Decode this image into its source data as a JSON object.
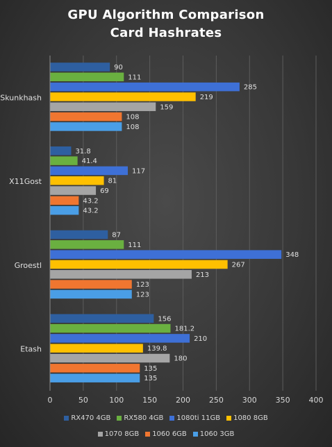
{
  "chart_data": {
    "type": "bar",
    "orientation": "horizontal",
    "title": "GPU Algorithm Comparison\nCard Hashrates",
    "title_lines": [
      "GPU Algorithm  Comparison",
      "Card  Hashrates"
    ],
    "categories": [
      "Skunkhash",
      "X11Gost",
      "Groestl",
      "Etash"
    ],
    "series": [
      {
        "name": "RX470 4GB",
        "color": "#2e5fa0",
        "values": [
          90,
          31.8,
          87,
          156
        ],
        "labels": [
          "90",
          "31.8",
          "87",
          "156"
        ]
      },
      {
        "name": "RX580 4GB",
        "color": "#6ab040",
        "values": [
          111,
          41.4,
          111,
          181.2
        ],
        "labels": [
          "111",
          "41.4",
          "111",
          "181.2"
        ]
      },
      {
        "name": "1080ti 11GB",
        "color": "#3e70d6",
        "values": [
          285,
          117,
          348,
          210
        ],
        "labels": [
          "285",
          "117",
          "348",
          "210"
        ]
      },
      {
        "name": "1080 8GB",
        "color": "#ffc000",
        "values": [
          219,
          81,
          267,
          139.8
        ],
        "labels": [
          "219",
          "81",
          "267",
          "139.8"
        ]
      },
      {
        "name": "1070 8GB",
        "color": "#a5a5a5",
        "values": [
          159,
          69,
          213,
          180
        ],
        "labels": [
          "159",
          "69",
          "213",
          "180"
        ]
      },
      {
        "name": "1060 6GB",
        "color": "#f07630",
        "values": [
          108,
          43.2,
          123,
          135
        ],
        "labels": [
          "108",
          "43.2",
          "123",
          "135"
        ]
      },
      {
        "name": "1060 3GB",
        "color": "#4a9ee6",
        "values": [
          108,
          43.2,
          123,
          135
        ],
        "labels": [
          "108",
          "43.2",
          "123",
          "135"
        ]
      }
    ],
    "xlim": [
      0,
      400
    ],
    "x_ticks": [
      0,
      50,
      100,
      150,
      200,
      250,
      300,
      350,
      400
    ],
    "grid": true,
    "legend_position": "bottom",
    "xlabel": "",
    "ylabel": ""
  }
}
